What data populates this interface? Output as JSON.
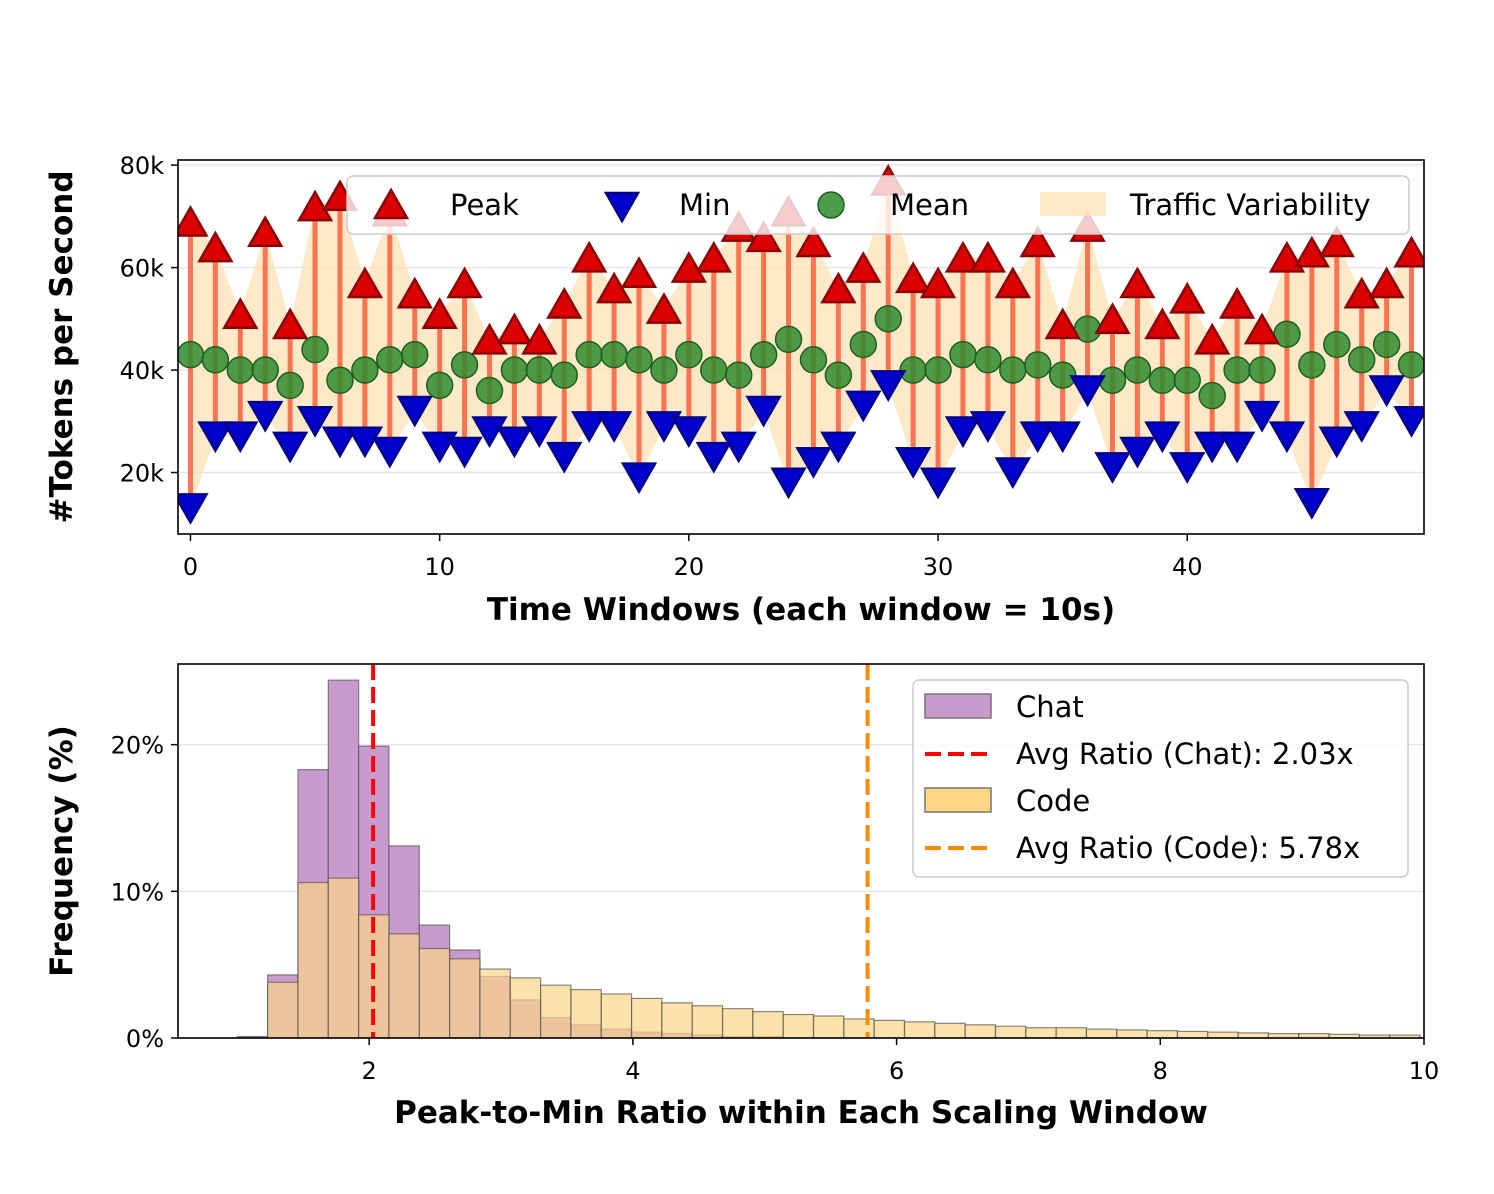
{
  "chart_data": [
    {
      "type": "scatter",
      "xlabel": "Time Windows (each window = 10s)",
      "ylabel": "#Tokens per Second",
      "xlim": [
        -0.5,
        49.5
      ],
      "ylim": [
        8000,
        81000
      ],
      "xticks": [
        0,
        10,
        20,
        30,
        40
      ],
      "xtick_labels": [
        "0",
        "10",
        "20",
        "30",
        "40"
      ],
      "yticks": [
        20000,
        40000,
        60000,
        80000
      ],
      "ytick_labels": [
        "20k",
        "40k",
        "60k",
        "80k"
      ],
      "grid": "y",
      "legend_position": "top",
      "legend": [
        "Peak",
        "Min",
        "Mean",
        "Traffic Variability"
      ],
      "x": [
        0,
        1,
        2,
        3,
        4,
        5,
        6,
        7,
        8,
        9,
        10,
        11,
        12,
        13,
        14,
        15,
        16,
        17,
        18,
        19,
        20,
        21,
        22,
        23,
        24,
        25,
        26,
        27,
        28,
        29,
        30,
        31,
        32,
        33,
        34,
        35,
        36,
        37,
        38,
        39,
        40,
        41,
        42,
        43,
        44,
        45,
        46,
        47,
        48,
        49
      ],
      "series": [
        {
          "name": "Peak",
          "color": "#dd0000",
          "values": [
            69000,
            64000,
            51000,
            67000,
            49000,
            72000,
            74000,
            57000,
            71000,
            55000,
            51000,
            57000,
            46000,
            48000,
            46000,
            53000,
            62000,
            56000,
            59000,
            52000,
            60000,
            62000,
            68000,
            66000,
            71000,
            65000,
            56000,
            60000,
            77000,
            58000,
            57000,
            62000,
            62000,
            57000,
            65000,
            49000,
            68000,
            50000,
            57000,
            49000,
            54000,
            46000,
            53000,
            48000,
            62000,
            63000,
            65000,
            55000,
            57000,
            63000
          ]
        },
        {
          "name": "Min",
          "color": "#0000cc",
          "values": [
            13000,
            27000,
            27000,
            31000,
            25000,
            30000,
            26000,
            26000,
            24000,
            32000,
            25000,
            24000,
            28000,
            26000,
            28000,
            23000,
            29000,
            29000,
            19000,
            29000,
            28000,
            23000,
            25000,
            32000,
            18000,
            22000,
            25000,
            33000,
            37000,
            22000,
            18000,
            28000,
            29000,
            20000,
            27000,
            27000,
            36000,
            21000,
            24000,
            27000,
            21000,
            25000,
            25000,
            31000,
            27000,
            14000,
            26000,
            29000,
            36000,
            30000
          ]
        },
        {
          "name": "Mean",
          "color": "#2e8b2e",
          "values": [
            43000,
            42000,
            40000,
            40000,
            37000,
            44000,
            38000,
            40000,
            42000,
            43000,
            37000,
            41000,
            36000,
            40000,
            40000,
            39000,
            43000,
            43000,
            42000,
            40000,
            43000,
            40000,
            39000,
            43000,
            46000,
            42000,
            39000,
            45000,
            50000,
            40000,
            40000,
            43000,
            42000,
            40000,
            41000,
            39000,
            48000,
            38000,
            40000,
            38000,
            38000,
            35000,
            40000,
            40000,
            47000,
            41000,
            45000,
            42000,
            45000,
            41000
          ]
        }
      ]
    },
    {
      "type": "bar",
      "xlabel": "Peak-to-Min Ratio within Each Scaling Window",
      "ylabel": "Frequency (%)",
      "xlim": [
        0.55,
        10
      ],
      "ylim": [
        0,
        25.5
      ],
      "xticks": [
        2,
        4,
        6,
        8,
        10
      ],
      "xtick_labels": [
        "2",
        "4",
        "6",
        "8",
        "10"
      ],
      "yticks": [
        0,
        10,
        20
      ],
      "ytick_labels": [
        "0%",
        "10%",
        "20%"
      ],
      "grid": "y",
      "legend_position": "top-right",
      "bin_edges": [
        1.0,
        1.23,
        1.46,
        1.69,
        1.92,
        2.15,
        2.38,
        2.61,
        2.84,
        3.07,
        3.3,
        3.53,
        3.76,
        3.99,
        4.22,
        4.45,
        4.68,
        4.91,
        5.14,
        5.37,
        5.6,
        5.83,
        6.06,
        6.29,
        6.52,
        6.75,
        6.98,
        7.21,
        7.44,
        7.67,
        7.9,
        8.13,
        8.36,
        8.59,
        8.82,
        9.05,
        9.28,
        9.51,
        9.74,
        9.97
      ],
      "series": [
        {
          "name": "Chat",
          "color": "#c89acd",
          "values": [
            0.1,
            4.3,
            18.3,
            24.4,
            19.9,
            13.1,
            7.7,
            6.0,
            4.2,
            2.6,
            1.4,
            0.9,
            0.6,
            0.4,
            0.3,
            0.2,
            0.1,
            0.1,
            0,
            0,
            0,
            0,
            0,
            0,
            0,
            0,
            0,
            0,
            0,
            0,
            0,
            0,
            0,
            0,
            0,
            0,
            0,
            0,
            0
          ]
        },
        {
          "name": "Code",
          "color": "#fed688",
          "values": [
            0,
            3.8,
            10.6,
            10.9,
            8.4,
            7.1,
            6.1,
            5.4,
            4.7,
            4.1,
            3.6,
            3.3,
            3.0,
            2.7,
            2.4,
            2.2,
            2.0,
            1.8,
            1.6,
            1.5,
            1.3,
            1.2,
            1.1,
            1.0,
            0.9,
            0.8,
            0.7,
            0.7,
            0.6,
            0.55,
            0.5,
            0.45,
            0.4,
            0.35,
            0.3,
            0.3,
            0.25,
            0.2,
            0.2
          ]
        }
      ],
      "vlines": [
        {
          "label": "Avg Ratio (Chat): 2.03x",
          "x": 2.03,
          "color": "#ff0000"
        },
        {
          "label": "Avg Ratio (Code): 5.78x",
          "x": 5.78,
          "color": "#ff8c00"
        }
      ],
      "legend": [
        "Chat",
        "Avg Ratio (Chat): 2.03x",
        "Code",
        "Avg Ratio (Code): 5.78x"
      ]
    }
  ]
}
